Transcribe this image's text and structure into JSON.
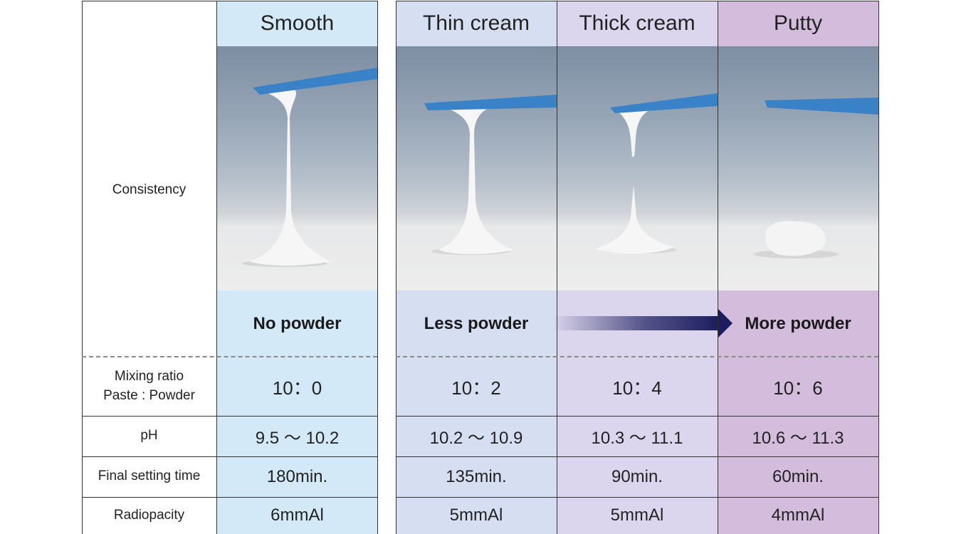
{
  "row_labels": {
    "consistency": "Consistency",
    "mixing_line1": "Mixing ratio",
    "mixing_line2": "Paste : Powder",
    "ph": "pH",
    "setting": "Final setting time",
    "radiopacity": "Radiopacity"
  },
  "columns": [
    {
      "header": "Smooth",
      "powder": "No powder",
      "mixing": "10：0",
      "ph": "9.5 〜 10.2",
      "setting": "180min.",
      "radiopacity": "6mmAl",
      "color": "#d3e9f8"
    },
    {
      "header": "Thin cream",
      "powder": "Less powder",
      "mixing": "10：2",
      "ph": "10.2 〜 10.9",
      "setting": "135min.",
      "radiopacity": "5mmAl",
      "color": "#d6dff1"
    },
    {
      "header": "Thick cream",
      "powder": "",
      "mixing": "10：4",
      "ph": "10.3 〜 11.1",
      "setting": "90min.",
      "radiopacity": "5mmAl",
      "color": "#dbd6ee"
    },
    {
      "header": "Putty",
      "powder": "More powder",
      "mixing": "10：6",
      "ph": "10.6 〜 11.3",
      "setting": "60min.",
      "radiopacity": "4mmAl",
      "color": "#d3bcdc"
    }
  ],
  "arrow_color": "#1c1c5e",
  "spatula_color": "#3a82c8"
}
